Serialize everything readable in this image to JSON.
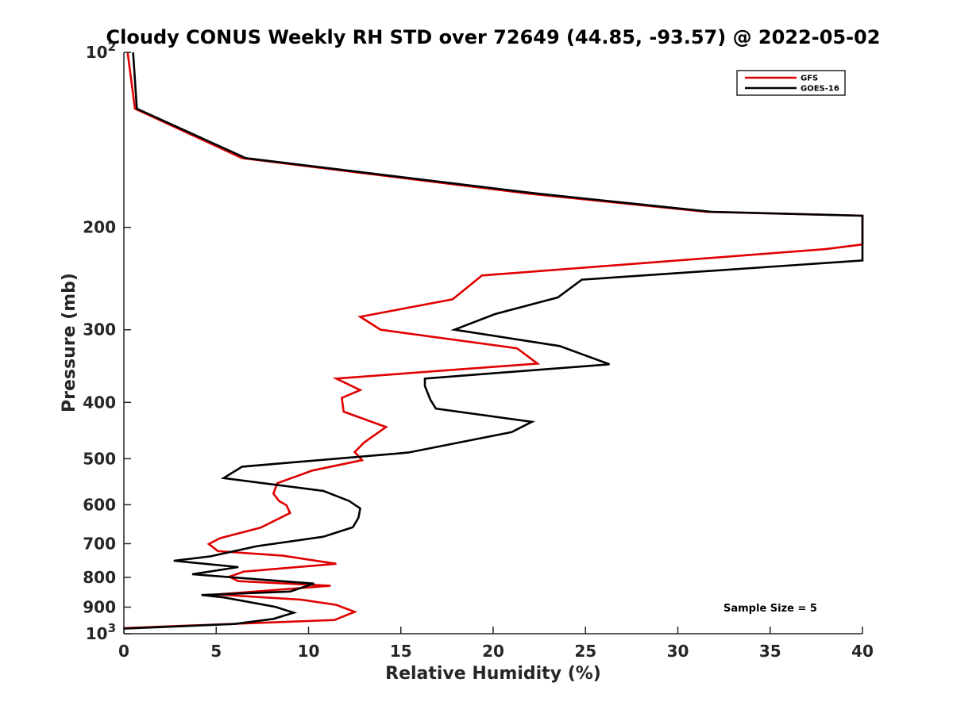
{
  "chart_data": {
    "type": "line",
    "title": "Cloudy CONUS Weekly RH STD over 72649 (44.85, -93.57) @ 2022-05-02",
    "xlabel": "Relative Humidity (%)",
    "ylabel": "Pressure (mb)",
    "xlim": [
      0,
      40
    ],
    "ylim": [
      100,
      1000
    ],
    "yscale": "log",
    "y_reversed": true,
    "grid": false,
    "legend_position": "top-right",
    "x_ticks": [
      "0",
      "5",
      "10",
      "15",
      "20",
      "25",
      "30",
      "35",
      "40"
    ],
    "y_ticks": [
      {
        "value": 100,
        "base": "10",
        "exp": "2"
      },
      {
        "value": 200,
        "label": "200"
      },
      {
        "value": 300,
        "label": "300"
      },
      {
        "value": 400,
        "label": "400"
      },
      {
        "value": 500,
        "label": "500"
      },
      {
        "value": 600,
        "label": "600"
      },
      {
        "value": 700,
        "label": "700"
      },
      {
        "value": 800,
        "label": "800"
      },
      {
        "value": 900,
        "label": "900"
      },
      {
        "value": 1000,
        "base": "10",
        "exp": "3"
      }
    ],
    "annotation": "Sample Size = 5",
    "series": [
      {
        "name": "GFS",
        "color": "#e00000",
        "points": [
          [
            0.2,
            100
          ],
          [
            0.6,
            125
          ],
          [
            6.4,
            152
          ],
          [
            21.9,
            175
          ],
          [
            31.5,
            188
          ],
          [
            40,
            191
          ],
          [
            40,
            214
          ],
          [
            38.0,
            218
          ],
          [
            19.4,
            242
          ],
          [
            17.8,
            266
          ],
          [
            12.8,
            285
          ],
          [
            13.9,
            300
          ],
          [
            21.3,
            323
          ],
          [
            22.4,
            343
          ],
          [
            11.5,
            364
          ],
          [
            12.8,
            381
          ],
          [
            11.8,
            393
          ],
          [
            11.9,
            415
          ],
          [
            14.2,
            441
          ],
          [
            13.0,
            469
          ],
          [
            12.5,
            487
          ],
          [
            12.9,
            503
          ],
          [
            10.2,
            524
          ],
          [
            8.3,
            551
          ],
          [
            8.1,
            574
          ],
          [
            8.4,
            591
          ],
          [
            8.8,
            601
          ],
          [
            9.0,
            620
          ],
          [
            7.4,
            657
          ],
          [
            5.2,
            685
          ],
          [
            4.6,
            701
          ],
          [
            5.1,
            721
          ],
          [
            8.6,
            734
          ],
          [
            11.5,
            758
          ],
          [
            6.5,
            782
          ],
          [
            5.7,
            798
          ],
          [
            6.2,
            812
          ],
          [
            11.2,
            827
          ],
          [
            5.0,
            856
          ],
          [
            9.6,
            874
          ],
          [
            11.5,
            892
          ],
          [
            12.5,
            917
          ],
          [
            11.4,
            947
          ],
          [
            0,
            978
          ]
        ]
      },
      {
        "name": "GOES-16",
        "color": "#000000",
        "points": [
          [
            0.5,
            100
          ],
          [
            0.7,
            125
          ],
          [
            6.6,
            152
          ],
          [
            22.4,
            175
          ],
          [
            31.8,
            188
          ],
          [
            40,
            191
          ],
          [
            40,
            228
          ],
          [
            24.8,
            246
          ],
          [
            23.5,
            264
          ],
          [
            20.1,
            282
          ],
          [
            17.9,
            300
          ],
          [
            23.6,
            320
          ],
          [
            26.3,
            344
          ],
          [
            16.3,
            364
          ],
          [
            16.3,
            375
          ],
          [
            16.6,
            396
          ],
          [
            16.9,
            410
          ],
          [
            22.1,
            432
          ],
          [
            21.0,
            450
          ],
          [
            15.4,
            488
          ],
          [
            6.4,
            516
          ],
          [
            5.4,
            540
          ],
          [
            10.8,
            568
          ],
          [
            12.2,
            591
          ],
          [
            12.8,
            609
          ],
          [
            12.7,
            632
          ],
          [
            12.4,
            656
          ],
          [
            10.8,
            681
          ],
          [
            7.2,
            707
          ],
          [
            4.7,
            736
          ],
          [
            2.7,
            749
          ],
          [
            6.2,
            768
          ],
          [
            3.7,
            790
          ],
          [
            10.3,
            820
          ],
          [
            9.0,
            846
          ],
          [
            4.2,
            858
          ],
          [
            5.4,
            866
          ],
          [
            8.2,
            899
          ],
          [
            9.2,
            920
          ],
          [
            8.1,
            943
          ],
          [
            6.0,
            962
          ],
          [
            0,
            980
          ]
        ]
      }
    ]
  }
}
